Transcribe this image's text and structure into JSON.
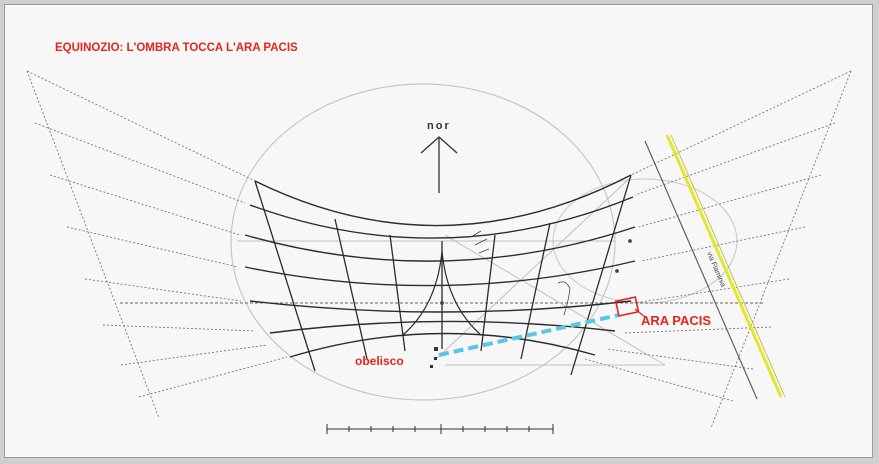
{
  "title": "EQUINOZIO: L'OMBRA TOCCA L'ARA PACIS",
  "north_label": "nor",
  "ara_pacis_label": "ARA PACIS",
  "obelisk_label": "obelisco",
  "road_label": "via Flaminia",
  "colors": {
    "accent_red": "#e2261c",
    "shadow_cyan": "#59c6e6",
    "road_yellow": "#e4e62e",
    "line_dark": "#2b2b2b",
    "line_grey": "#b5b5b5"
  },
  "icons": [
    "north-arrow-icon",
    "scale-bar-icon"
  ]
}
